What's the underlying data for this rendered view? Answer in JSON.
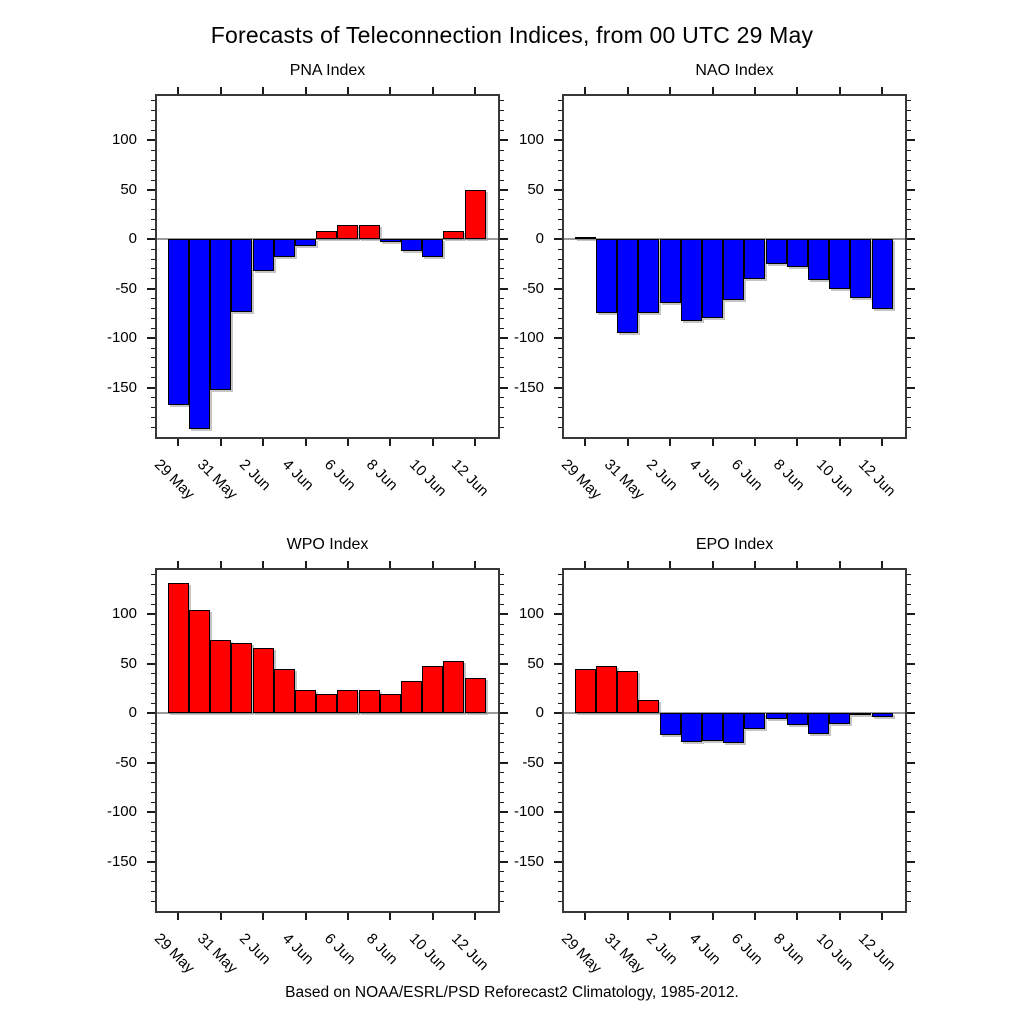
{
  "title": "Forecasts of Teleconnection Indices, from 00 UTC 29 May",
  "caption": "Based on NOAA/ESRL/PSD Reforecast2 Climatology, 1985-2012.",
  "colors": {
    "positive_bar": "#ff0000",
    "negative_bar": "#0000ff",
    "axis_frame": "#383838",
    "zero_line": "#9a9a9a",
    "tick": "#1c1c1c",
    "text": "#000000",
    "background": "#ffffff"
  },
  "chart_data": [
    {
      "type": "bar",
      "title": "PNA Index",
      "x": [
        "29 May",
        "30 May",
        "31 May",
        "1 Jun",
        "2 Jun",
        "3 Jun",
        "4 Jun",
        "5 Jun",
        "6 Jun",
        "7 Jun",
        "8 Jun",
        "9 Jun",
        "10 Jun",
        "11 Jun",
        "12 Jun"
      ],
      "values": [
        -168,
        -192,
        -152,
        -74,
        -32,
        -18,
        -7,
        8,
        14,
        14,
        -3,
        -12,
        -18,
        8,
        50
      ],
      "ylim": [
        -200,
        145
      ],
      "yticks": [
        100,
        50,
        0,
        -50,
        -100,
        -150
      ],
      "ytick_minor_step": 10,
      "xtick_labels": [
        "29 May",
        "31 May",
        "2 Jun",
        "4 Jun",
        "6 Jun",
        "8 Jun",
        "10 Jun",
        "12 Jun"
      ],
      "grid": false,
      "legend": null,
      "bar_color_rule": "red if positive, blue if negative"
    },
    {
      "type": "bar",
      "title": "NAO Index",
      "x": [
        "29 May",
        "30 May",
        "31 May",
        "1 Jun",
        "2 Jun",
        "3 Jun",
        "4 Jun",
        "5 Jun",
        "6 Jun",
        "7 Jun",
        "8 Jun",
        "9 Jun",
        "10 Jun",
        "11 Jun",
        "12 Jun"
      ],
      "values": [
        2,
        -75,
        -95,
        -75,
        -64,
        -83,
        -80,
        -61,
        -40,
        -25,
        -28,
        -41,
        -50,
        -59,
        -70
      ],
      "ylim": [
        -200,
        145
      ],
      "yticks": [
        100,
        50,
        0,
        -50,
        -100,
        -150
      ],
      "ytick_minor_step": 10,
      "xtick_labels": [
        "29 May",
        "31 May",
        "2 Jun",
        "4 Jun",
        "6 Jun",
        "8 Jun",
        "10 Jun",
        "12 Jun"
      ],
      "grid": false,
      "legend": null,
      "bar_color_rule": "red if positive, blue if negative"
    },
    {
      "type": "bar",
      "title": "WPO Index",
      "x": [
        "29 May",
        "30 May",
        "31 May",
        "1 Jun",
        "2 Jun",
        "3 Jun",
        "4 Jun",
        "5 Jun",
        "6 Jun",
        "7 Jun",
        "8 Jun",
        "9 Jun",
        "10 Jun",
        "11 Jun",
        "12 Jun"
      ],
      "values": [
        132,
        105,
        74,
        71,
        66,
        45,
        24,
        20,
        24,
        24,
        20,
        33,
        48,
        53,
        36
      ],
      "ylim": [
        -200,
        145
      ],
      "yticks": [
        100,
        50,
        0,
        -50,
        -100,
        -150
      ],
      "ytick_minor_step": 10,
      "xtick_labels": [
        "29 May",
        "31 May",
        "2 Jun",
        "4 Jun",
        "6 Jun",
        "8 Jun",
        "10 Jun",
        "12 Jun"
      ],
      "grid": false,
      "legend": null,
      "bar_color_rule": "red if positive, blue if negative"
    },
    {
      "type": "bar",
      "title": "EPO Index",
      "x": [
        "29 May",
        "30 May",
        "31 May",
        "1 Jun",
        "2 Jun",
        "3 Jun",
        "4 Jun",
        "5 Jun",
        "6 Jun",
        "7 Jun",
        "8 Jun",
        "9 Jun",
        "10 Jun",
        "11 Jun",
        "12 Jun"
      ],
      "values": [
        45,
        48,
        43,
        13,
        -22,
        -29,
        -28,
        -30,
        -16,
        -6,
        -12,
        -21,
        -11,
        -2,
        -4
      ],
      "ylim": [
        -200,
        145
      ],
      "yticks": [
        100,
        50,
        0,
        -50,
        -100,
        -150
      ],
      "ytick_minor_step": 10,
      "xtick_labels": [
        "29 May",
        "31 May",
        "2 Jun",
        "4 Jun",
        "6 Jun",
        "8 Jun",
        "10 Jun",
        "12 Jun"
      ],
      "grid": false,
      "legend": null,
      "bar_color_rule": "red if positive, blue if negative"
    }
  ]
}
